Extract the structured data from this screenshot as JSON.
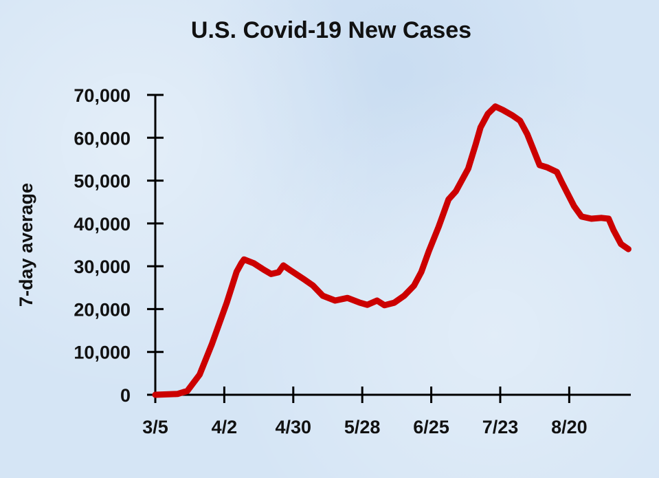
{
  "chart_data": {
    "type": "line",
    "title": "U.S. Covid-19 New Cases",
    "xlabel": "",
    "ylabel": "7-day average",
    "xlim_days_from_3_5": [
      0,
      193
    ],
    "ylim": [
      0,
      70000
    ],
    "grid": false,
    "x_ticks": [
      {
        "day": 0,
        "label": "3/5"
      },
      {
        "day": 28,
        "label": "4/2"
      },
      {
        "day": 56,
        "label": "4/30"
      },
      {
        "day": 84,
        "label": "5/28"
      },
      {
        "day": 112,
        "label": "6/25"
      },
      {
        "day": 140,
        "label": "7/23"
      },
      {
        "day": 168,
        "label": "8/20"
      }
    ],
    "y_ticks": [
      {
        "value": 0,
        "label": "0"
      },
      {
        "value": 10000,
        "label": "10,000"
      },
      {
        "value": 20000,
        "label": "20,000"
      },
      {
        "value": 30000,
        "label": "30,000"
      },
      {
        "value": 40000,
        "label": "40,000"
      },
      {
        "value": 50000,
        "label": "50,000"
      },
      {
        "value": 60000,
        "label": "60,000"
      },
      {
        "value": 70000,
        "label": "70,000"
      }
    ],
    "series": [
      {
        "name": "7-day average new cases",
        "color": "#cc0000",
        "x": [
          0,
          9,
          13,
          18,
          23,
          29,
          33,
          35,
          36,
          40,
          44,
          47,
          50,
          52,
          55,
          60,
          64,
          68,
          73,
          78,
          83,
          86,
          90,
          93,
          97,
          101,
          105,
          108,
          111,
          115,
          119,
          122,
          127,
          130,
          132,
          135,
          138,
          141,
          145,
          148,
          151,
          156,
          159,
          163,
          165,
          170,
          173,
          177,
          181,
          184,
          186,
          189,
          192
        ],
        "y": [
          0,
          200,
          900,
          4700,
          11900,
          21500,
          28700,
          30800,
          31600,
          30700,
          29200,
          28200,
          28600,
          30200,
          29000,
          27100,
          25500,
          23100,
          22000,
          22600,
          21500,
          21000,
          22000,
          20900,
          21500,
          23100,
          25500,
          28700,
          33500,
          39200,
          45600,
          47500,
          52800,
          58400,
          62400,
          65600,
          67300,
          66500,
          65200,
          64000,
          60800,
          53600,
          53100,
          52000,
          49600,
          44000,
          41600,
          41100,
          41300,
          41100,
          38400,
          35200,
          34000
        ]
      }
    ]
  }
}
